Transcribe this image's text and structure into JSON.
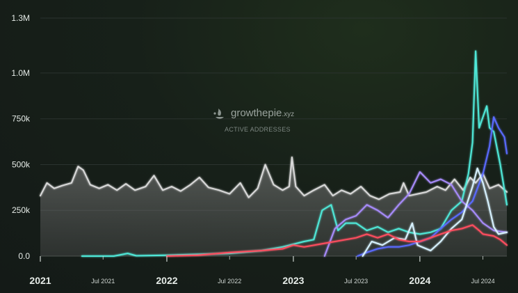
{
  "watermark": {
    "brand": "growthepie",
    "suffix": ".xyz",
    "subtitle": "ACTIVE ADDRESSES"
  },
  "chart_data": {
    "type": "line",
    "title": "",
    "ylim": [
      0,
      1300000
    ],
    "y_ticks": [
      {
        "value": 0,
        "label": "0.0"
      },
      {
        "value": 250000,
        "label": "250k"
      },
      {
        "value": 500000,
        "label": "500k"
      },
      {
        "value": 750000,
        "label": "750k"
      },
      {
        "value": 1000000,
        "label": "1.0M"
      },
      {
        "value": 1300000,
        "label": "1.3M"
      }
    ],
    "xlim": [
      "2021-01-01",
      "2024-09-08"
    ],
    "x_ticks": [
      {
        "date": "2021-01-01",
        "label": "2021",
        "major": true
      },
      {
        "date": "2021-07-01",
        "label": "Jul 2021",
        "major": false
      },
      {
        "date": "2022-01-01",
        "label": "2022",
        "major": true
      },
      {
        "date": "2022-07-01",
        "label": "Jul 2022",
        "major": false
      },
      {
        "date": "2023-01-01",
        "label": "2023",
        "major": true
      },
      {
        "date": "2023-07-01",
        "label": "Jul 2023",
        "major": false
      },
      {
        "date": "2024-01-01",
        "label": "2024",
        "major": true
      },
      {
        "date": "2024-07-01",
        "label": "Jul 2024",
        "major": false
      }
    ],
    "grid": true,
    "series": [
      {
        "color": "#d9d9d9",
        "area": true,
        "points": [
          [
            "2021-01-01",
            330000
          ],
          [
            "2021-01-20",
            400000
          ],
          [
            "2021-02-10",
            370000
          ],
          [
            "2021-03-05",
            385000
          ],
          [
            "2021-04-01",
            400000
          ],
          [
            "2021-04-20",
            490000
          ],
          [
            "2021-05-05",
            470000
          ],
          [
            "2021-05-25",
            390000
          ],
          [
            "2021-06-20",
            370000
          ],
          [
            "2021-07-15",
            390000
          ],
          [
            "2021-08-10",
            360000
          ],
          [
            "2021-09-05",
            395000
          ],
          [
            "2021-10-01",
            360000
          ],
          [
            "2021-11-01",
            380000
          ],
          [
            "2021-11-25",
            440000
          ],
          [
            "2021-12-20",
            360000
          ],
          [
            "2022-01-15",
            380000
          ],
          [
            "2022-02-10",
            355000
          ],
          [
            "2022-03-10",
            390000
          ],
          [
            "2022-04-05",
            430000
          ],
          [
            "2022-05-01",
            375000
          ],
          [
            "2022-06-01",
            360000
          ],
          [
            "2022-07-01",
            340000
          ],
          [
            "2022-08-01",
            400000
          ],
          [
            "2022-08-25",
            320000
          ],
          [
            "2022-09-20",
            370000
          ],
          [
            "2022-10-12",
            500000
          ],
          [
            "2022-11-05",
            390000
          ],
          [
            "2022-12-01",
            360000
          ],
          [
            "2022-12-20",
            380000
          ],
          [
            "2022-12-28",
            540000
          ],
          [
            "2023-01-08",
            380000
          ],
          [
            "2023-02-01",
            330000
          ],
          [
            "2023-03-01",
            360000
          ],
          [
            "2023-04-01",
            390000
          ],
          [
            "2023-04-25",
            330000
          ],
          [
            "2023-05-20",
            360000
          ],
          [
            "2023-06-15",
            340000
          ],
          [
            "2023-07-15",
            380000
          ],
          [
            "2023-08-10",
            330000
          ],
          [
            "2023-09-05",
            310000
          ],
          [
            "2023-10-05",
            340000
          ],
          [
            "2023-11-05",
            350000
          ],
          [
            "2023-11-15",
            400000
          ],
          [
            "2023-12-01",
            330000
          ],
          [
            "2023-12-25",
            340000
          ],
          [
            "2024-01-20",
            350000
          ],
          [
            "2024-02-20",
            380000
          ],
          [
            "2024-03-15",
            360000
          ],
          [
            "2024-04-10",
            420000
          ],
          [
            "2024-05-05",
            360000
          ],
          [
            "2024-05-25",
            430000
          ],
          [
            "2024-06-10",
            400000
          ],
          [
            "2024-07-01",
            450000
          ],
          [
            "2024-07-20",
            370000
          ],
          [
            "2024-08-15",
            390000
          ],
          [
            "2024-09-08",
            350000
          ]
        ]
      },
      {
        "color": "#4fe8d8",
        "area": false,
        "points": [
          [
            "2021-05-01",
            0
          ],
          [
            "2021-08-01",
            0
          ],
          [
            "2021-09-10",
            15000
          ],
          [
            "2021-10-05",
            2000
          ],
          [
            "2022-01-01",
            5000
          ],
          [
            "2022-07-01",
            15000
          ],
          [
            "2022-10-01",
            30000
          ],
          [
            "2022-12-01",
            50000
          ],
          [
            "2023-02-01",
            80000
          ],
          [
            "2023-03-01",
            90000
          ],
          [
            "2023-03-25",
            250000
          ],
          [
            "2023-04-20",
            280000
          ],
          [
            "2023-05-10",
            140000
          ],
          [
            "2023-06-01",
            180000
          ],
          [
            "2023-07-01",
            180000
          ],
          [
            "2023-08-01",
            140000
          ],
          [
            "2023-09-01",
            160000
          ],
          [
            "2023-10-01",
            130000
          ],
          [
            "2023-11-01",
            150000
          ],
          [
            "2023-12-01",
            130000
          ],
          [
            "2024-01-01",
            120000
          ],
          [
            "2024-02-01",
            130000
          ],
          [
            "2024-03-01",
            150000
          ],
          [
            "2024-04-01",
            250000
          ],
          [
            "2024-05-01",
            300000
          ],
          [
            "2024-05-20",
            450000
          ],
          [
            "2024-06-01",
            620000
          ],
          [
            "2024-06-10",
            1120000
          ],
          [
            "2024-06-20",
            700000
          ],
          [
            "2024-07-01",
            760000
          ],
          [
            "2024-07-12",
            820000
          ],
          [
            "2024-07-20",
            700000
          ],
          [
            "2024-08-01",
            680000
          ],
          [
            "2024-08-20",
            500000
          ],
          [
            "2024-09-08",
            280000
          ]
        ]
      },
      {
        "color": "#5a6bff",
        "area": false,
        "points": [
          [
            "2023-07-05",
            0
          ],
          [
            "2023-08-01",
            20000
          ],
          [
            "2023-09-01",
            40000
          ],
          [
            "2023-10-01",
            50000
          ],
          [
            "2023-11-01",
            50000
          ],
          [
            "2023-12-01",
            60000
          ],
          [
            "2024-01-01",
            80000
          ],
          [
            "2024-02-01",
            100000
          ],
          [
            "2024-03-01",
            150000
          ],
          [
            "2024-04-01",
            200000
          ],
          [
            "2024-05-01",
            240000
          ],
          [
            "2024-06-01",
            300000
          ],
          [
            "2024-07-01",
            450000
          ],
          [
            "2024-07-20",
            600000
          ],
          [
            "2024-08-01",
            760000
          ],
          [
            "2024-08-15",
            700000
          ],
          [
            "2024-09-01",
            650000
          ],
          [
            "2024-09-08",
            560000
          ]
        ]
      },
      {
        "color": "#a78bfa",
        "area": false,
        "points": [
          [
            "2023-04-01",
            0
          ],
          [
            "2023-05-01",
            150000
          ],
          [
            "2023-06-01",
            200000
          ],
          [
            "2023-07-01",
            220000
          ],
          [
            "2023-08-01",
            280000
          ],
          [
            "2023-09-01",
            250000
          ],
          [
            "2023-10-01",
            210000
          ],
          [
            "2023-11-01",
            280000
          ],
          [
            "2023-12-01",
            340000
          ],
          [
            "2024-01-01",
            460000
          ],
          [
            "2024-02-01",
            400000
          ],
          [
            "2024-03-01",
            420000
          ],
          [
            "2024-04-01",
            390000
          ],
          [
            "2024-05-01",
            300000
          ],
          [
            "2024-06-01",
            250000
          ],
          [
            "2024-07-01",
            180000
          ],
          [
            "2024-08-01",
            140000
          ],
          [
            "2024-09-08",
            130000
          ]
        ]
      },
      {
        "color": "#d7f2ff",
        "area": false,
        "points": [
          [
            "2023-07-20",
            0
          ],
          [
            "2023-08-15",
            80000
          ],
          [
            "2023-09-15",
            60000
          ],
          [
            "2023-10-20",
            100000
          ],
          [
            "2023-11-20",
            90000
          ],
          [
            "2023-12-10",
            180000
          ],
          [
            "2023-12-25",
            60000
          ],
          [
            "2024-02-01",
            30000
          ],
          [
            "2024-03-01",
            80000
          ],
          [
            "2024-04-01",
            150000
          ],
          [
            "2024-05-01",
            200000
          ],
          [
            "2024-06-01",
            380000
          ],
          [
            "2024-06-15",
            480000
          ],
          [
            "2024-07-01",
            400000
          ],
          [
            "2024-07-15",
            300000
          ],
          [
            "2024-08-01",
            160000
          ],
          [
            "2024-08-15",
            120000
          ],
          [
            "2024-09-08",
            130000
          ]
        ]
      },
      {
        "color": "#ff4d5e",
        "area": false,
        "points": [
          [
            "2022-01-01",
            0
          ],
          [
            "2022-04-01",
            5000
          ],
          [
            "2022-07-01",
            20000
          ],
          [
            "2022-10-01",
            30000
          ],
          [
            "2022-12-01",
            40000
          ],
          [
            "2023-01-01",
            60000
          ],
          [
            "2023-02-01",
            50000
          ],
          [
            "2023-04-01",
            70000
          ],
          [
            "2023-06-01",
            90000
          ],
          [
            "2023-07-01",
            100000
          ],
          [
            "2023-08-01",
            120000
          ],
          [
            "2023-09-01",
            100000
          ],
          [
            "2023-10-01",
            120000
          ],
          [
            "2023-11-01",
            90000
          ],
          [
            "2023-12-01",
            80000
          ],
          [
            "2024-01-01",
            80000
          ],
          [
            "2024-02-01",
            100000
          ],
          [
            "2024-03-01",
            120000
          ],
          [
            "2024-04-01",
            140000
          ],
          [
            "2024-05-01",
            150000
          ],
          [
            "2024-06-01",
            170000
          ],
          [
            "2024-06-20",
            140000
          ],
          [
            "2024-07-01",
            120000
          ],
          [
            "2024-08-01",
            110000
          ],
          [
            "2024-08-20",
            90000
          ],
          [
            "2024-09-08",
            60000
          ]
        ]
      }
    ]
  }
}
